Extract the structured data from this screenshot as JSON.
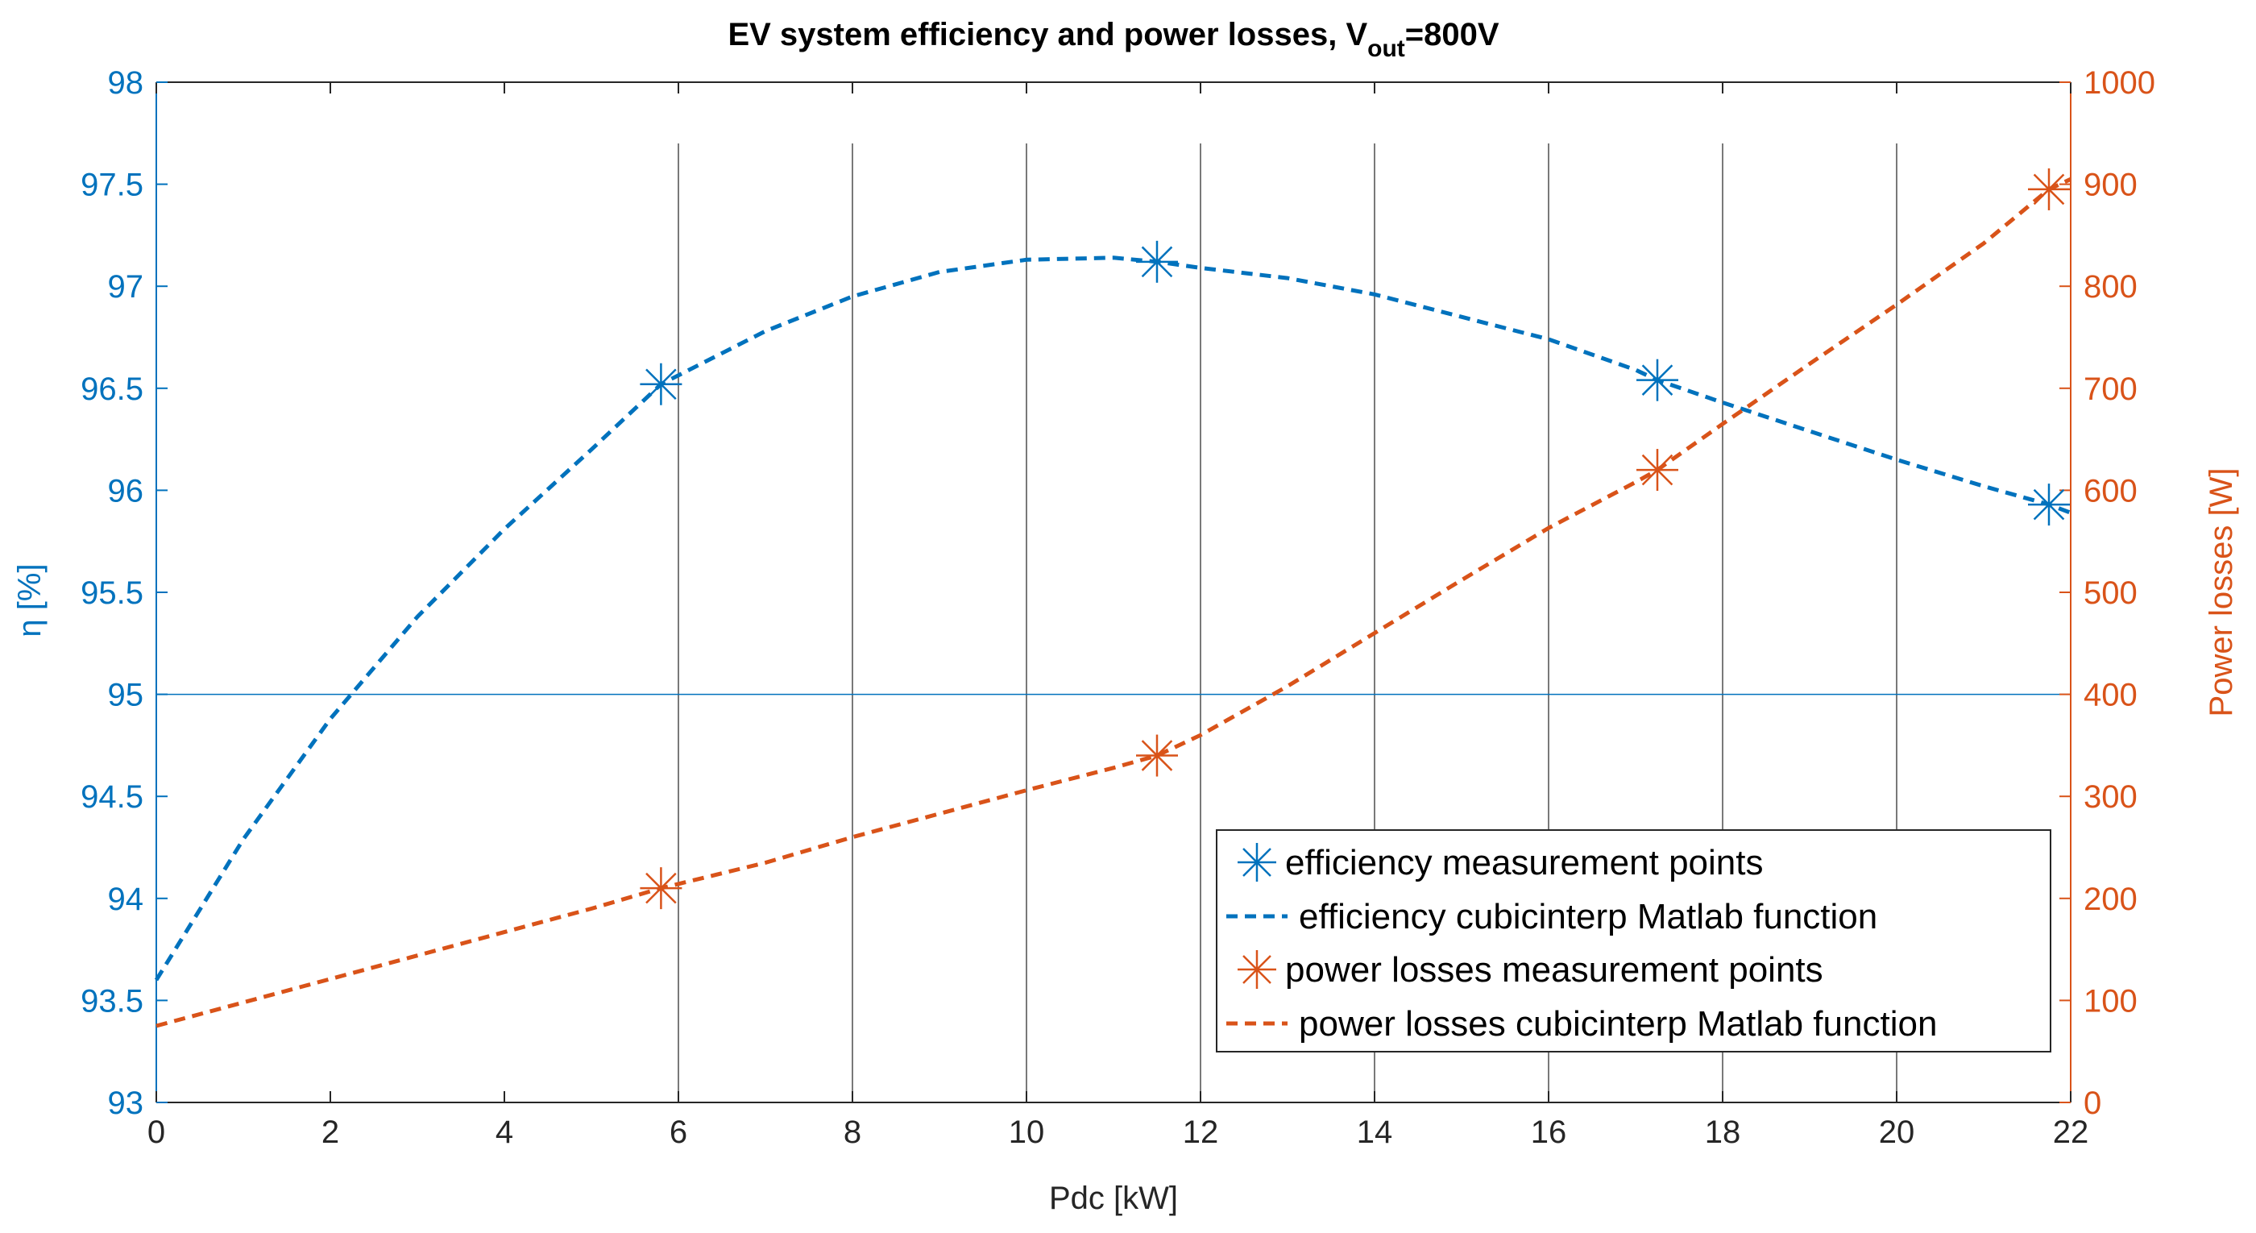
{
  "chart_data": {
    "type": "line",
    "title": "EV system efficiency and power losses, V",
    "title_subscript": "out",
    "title_suffix": "=800V",
    "xlabel": "Pdc [kW]",
    "ylabel_left": "η [%]",
    "ylabel_right": "Power losses [W]",
    "xlim": [
      0,
      22
    ],
    "ylim_left": [
      93,
      98
    ],
    "ylim_right": [
      0,
      1000
    ],
    "xticks": [
      "0",
      "2",
      "4",
      "6",
      "8",
      "10",
      "12",
      "14",
      "16",
      "18",
      "20",
      "22"
    ],
    "yticks_left": [
      "93",
      "93.5",
      "94",
      "94.5",
      "95",
      "95.5",
      "96",
      "96.5",
      "97",
      "97.5",
      "98"
    ],
    "yticks_right": [
      "0",
      "100",
      "200",
      "300",
      "400",
      "500",
      "600",
      "700",
      "800",
      "900",
      "1000"
    ],
    "grid": "vertical gridlines at x = 6, 8, 10, 12, 14, 16, 18, 20; horizontal line at 95 %",
    "legend_position": "bottom-right",
    "colors": {
      "efficiency": "#0072BD",
      "losses": "#D95319",
      "right_axis": "#D95319",
      "grid": "#4d4d4d"
    },
    "series": [
      {
        "name": "efficiency measurement points",
        "axis": "left",
        "style": "markers",
        "x": [
          5.8,
          11.5,
          17.25,
          21.75
        ],
        "y": [
          96.52,
          97.12,
          96.54,
          95.93
        ]
      },
      {
        "name": "efficiency cubicinterp Matlab function",
        "axis": "left",
        "style": "dashed",
        "x": [
          0,
          1,
          2,
          3,
          4,
          5,
          5.8,
          7,
          8,
          9,
          10,
          11,
          11.5,
          12,
          13,
          14,
          15,
          16,
          17,
          17.25,
          18,
          19,
          20,
          21,
          21.75,
          22
        ],
        "y": [
          93.6,
          94.29,
          94.88,
          95.38,
          95.81,
          96.2,
          96.52,
          96.78,
          96.95,
          97.07,
          97.13,
          97.14,
          97.12,
          97.09,
          97.04,
          96.96,
          96.85,
          96.74,
          96.59,
          96.54,
          96.43,
          96.29,
          96.15,
          96.02,
          95.93,
          95.89
        ]
      },
      {
        "name": "power losses measurement points",
        "axis": "right",
        "style": "markers",
        "x": [
          5.8,
          11.5,
          17.25,
          21.75
        ],
        "y": [
          210,
          340,
          620,
          895
        ]
      },
      {
        "name": "power losses cubicinterp Matlab function",
        "axis": "right",
        "style": "dashed",
        "x": [
          0,
          1,
          2,
          3,
          4,
          5,
          5.8,
          7,
          8,
          9,
          10,
          11,
          11.5,
          12,
          13,
          14,
          15,
          16,
          17,
          17.25,
          18,
          19,
          20,
          21,
          21.75,
          22
        ],
        "y": [
          75,
          98,
          121,
          144,
          167,
          190,
          210,
          235,
          260,
          283,
          306,
          328,
          340,
          360,
          408,
          460,
          512,
          563,
          608,
          620,
          665,
          724,
          782,
          842,
          895,
          905
        ]
      }
    ]
  }
}
